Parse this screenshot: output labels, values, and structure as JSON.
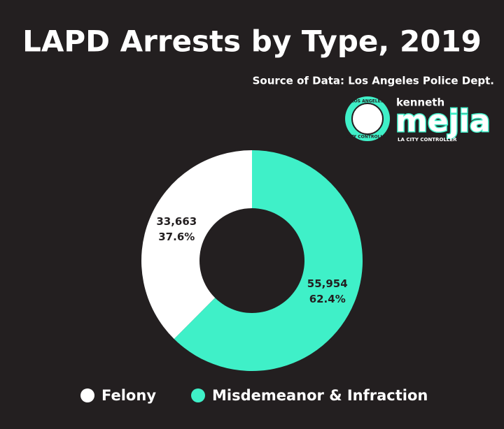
{
  "chart_data": {
    "type": "donut",
    "title": "LAPD Arrests by Type, 2019",
    "subtitle": "Source of Data: Los Angeles Police Dept.",
    "categories": [
      "Felony",
      "Misdemeanor & Infraction"
    ],
    "values": [
      33663,
      55954
    ],
    "value_labels": [
      "33,663",
      "55,954"
    ],
    "percentages": [
      37.6,
      62.4
    ],
    "percentage_labels": [
      "37.6%",
      "62.4%"
    ],
    "colors": [
      "#ffffff",
      "#3ff0c8"
    ],
    "legend": "bottom"
  },
  "logo": {
    "seal_top": "LOS ANGELES",
    "seal_bottom": "CITY CONTROLLER",
    "name_small": "kenneth",
    "name_big": "mejia",
    "tagline": "LA CITY CONTROLLER"
  }
}
